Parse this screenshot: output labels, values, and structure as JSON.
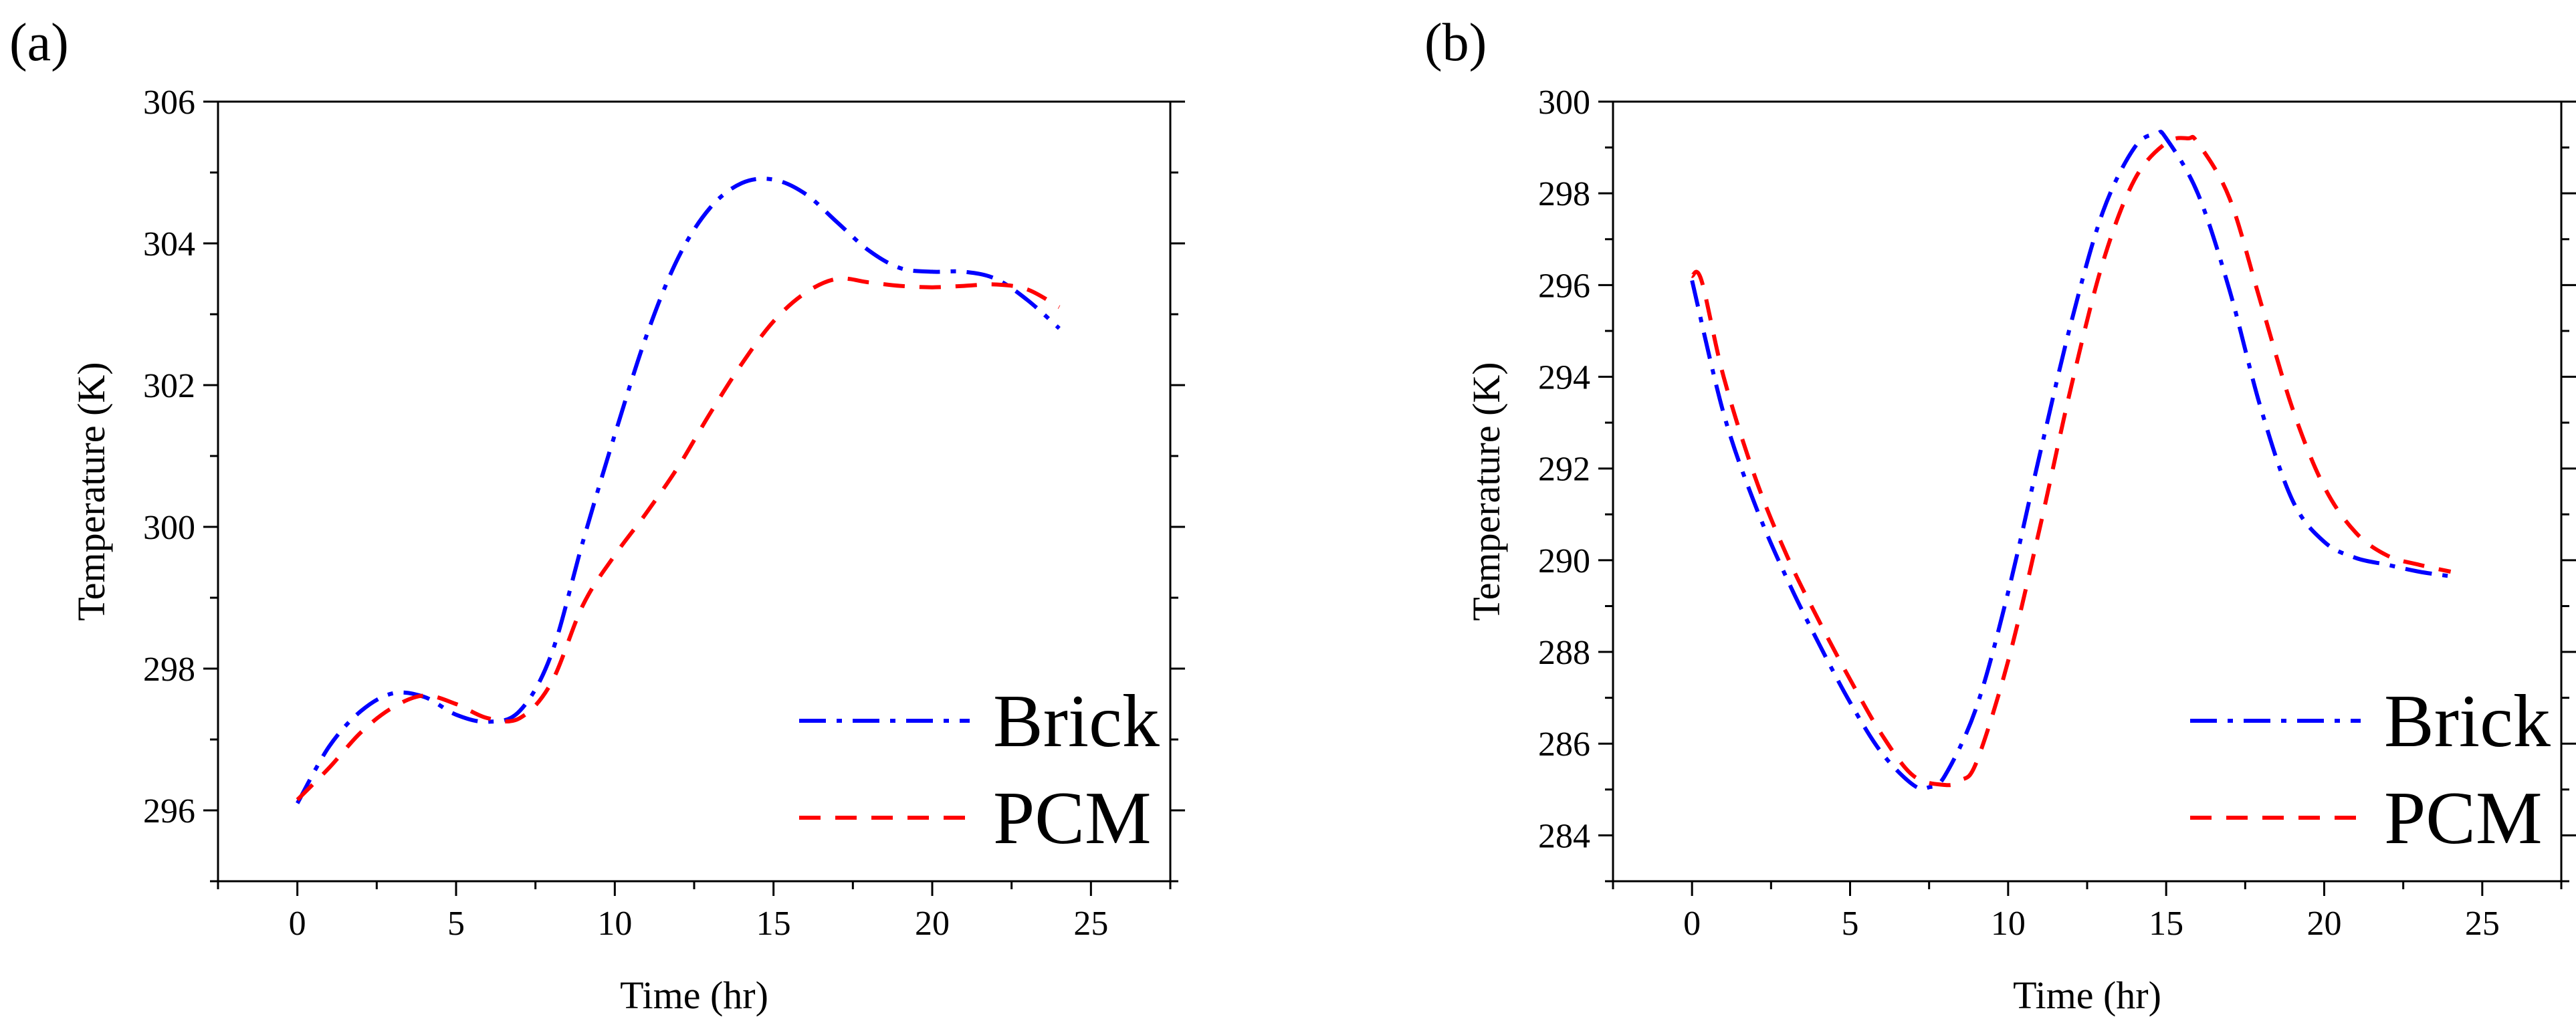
{
  "chart_data": [
    {
      "type": "line",
      "panel_label": "(a)",
      "xlabel": "Time (hr)",
      "ylabel": "Temperature (K)",
      "xlim": [
        -2.5,
        27.5
      ],
      "ylim": [
        295,
        306
      ],
      "xticks": [
        0,
        5,
        10,
        15,
        20,
        25
      ],
      "yticks": [
        296,
        298,
        300,
        302,
        304,
        306
      ],
      "legend_position": "bottom-right",
      "series": [
        {
          "name": "Brick",
          "color": "#0000ff",
          "style": "dash-dot",
          "x": [
            0,
            1,
            2,
            3,
            4,
            5,
            6,
            7,
            8,
            9,
            10,
            11,
            12,
            13,
            14,
            15,
            16,
            17,
            18,
            19,
            20,
            21,
            22,
            23,
            24
          ],
          "y": [
            296.1,
            296.9,
            297.4,
            297.65,
            297.6,
            297.35,
            297.25,
            297.4,
            298.2,
            299.8,
            301.3,
            302.7,
            303.8,
            304.5,
            304.85,
            304.9,
            304.7,
            304.3,
            303.9,
            303.65,
            303.6,
            303.6,
            303.5,
            303.2,
            302.8
          ]
        },
        {
          "name": "PCM",
          "color": "#ff0000",
          "style": "dashed",
          "x": [
            0,
            1,
            2,
            3,
            4,
            5,
            6,
            7,
            8,
            9,
            10,
            11,
            12,
            13,
            14,
            15,
            16,
            17,
            18,
            19,
            20,
            21,
            22,
            23,
            24
          ],
          "y": [
            296.15,
            296.6,
            297.1,
            297.45,
            297.62,
            297.5,
            297.3,
            297.3,
            297.8,
            298.9,
            299.6,
            300.2,
            300.85,
            301.6,
            302.3,
            302.9,
            303.3,
            303.5,
            303.45,
            303.4,
            303.38,
            303.4,
            303.42,
            303.35,
            303.1
          ]
        }
      ]
    },
    {
      "type": "line",
      "panel_label": "(b)",
      "xlabel": "Time (hr)",
      "ylabel": "Temperature (K)",
      "xlim": [
        -2.5,
        27.5
      ],
      "ylim": [
        283,
        300
      ],
      "xticks": [
        0,
        5,
        10,
        15,
        20,
        25
      ],
      "yticks": [
        284,
        286,
        288,
        290,
        292,
        294,
        296,
        298,
        300
      ],
      "legend_position": "bottom-right",
      "series": [
        {
          "name": "Brick",
          "color": "#0000ff",
          "style": "dash-dot",
          "x": [
            0,
            1,
            2,
            3,
            4,
            5,
            6,
            7,
            7.5,
            8,
            9,
            10,
            11,
            12,
            13,
            14,
            14.7,
            15,
            16,
            17,
            18,
            19,
            20,
            21,
            22,
            23,
            24
          ],
          "y": [
            296.1,
            293.2,
            291.2,
            289.6,
            288.2,
            286.9,
            285.8,
            285.1,
            285.05,
            285.3,
            286.8,
            289.3,
            292.3,
            295.2,
            297.6,
            299.0,
            299.3,
            299.2,
            298.0,
            295.9,
            293.3,
            291.3,
            290.4,
            290.05,
            289.9,
            289.75,
            289.65
          ]
        },
        {
          "name": "PCM",
          "color": "#ff0000",
          "style": "dashed",
          "x": [
            0,
            0.3,
            1,
            2,
            3,
            4,
            5,
            6,
            7,
            8,
            8.5,
            9,
            10,
            11,
            12,
            13,
            14,
            15,
            15.7,
            16,
            17,
            18,
            19,
            20,
            21,
            22,
            23,
            24
          ],
          "y": [
            296.2,
            296.1,
            294.0,
            291.8,
            290.1,
            288.7,
            287.4,
            286.2,
            285.3,
            285.1,
            285.2,
            285.6,
            287.8,
            290.7,
            293.8,
            296.5,
            298.3,
            299.1,
            299.2,
            299.1,
            297.9,
            295.6,
            293.3,
            291.6,
            290.6,
            290.1,
            289.9,
            289.75
          ]
        }
      ]
    }
  ]
}
